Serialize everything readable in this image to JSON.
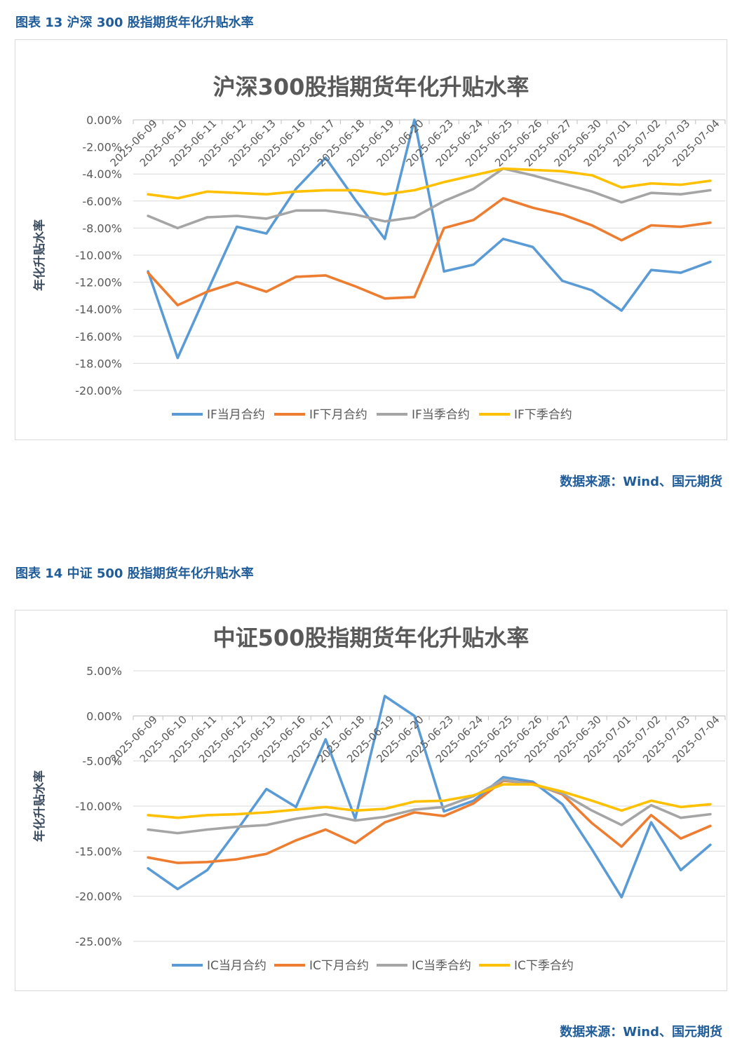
{
  "figures": [
    {
      "caption": "图表 13  沪深 300 股指期货年化升贴水率",
      "source": "数据来源：Wind、国元期货",
      "chart_data": {
        "type": "line",
        "title": "沪深300股指期货年化升贴水率",
        "ylabel": "年化升贴水率",
        "xlabel": "",
        "ylim": [
          -20,
          0
        ],
        "y_step": 2,
        "y_tick_decimals": 2,
        "y_unit": "%",
        "grid": true,
        "legend_position": "bottom",
        "categories": [
          "2025-06-09",
          "2025-06-10",
          "2025-06-11",
          "2025-06-12",
          "2025-06-13",
          "2025-06-16",
          "2025-06-17",
          "2025-06-18",
          "2025-06-19",
          "2025-06-20",
          "2025-06-23",
          "2025-06-24",
          "2025-06-25",
          "2025-06-26",
          "2025-06-27",
          "2025-06-30",
          "2025-07-01",
          "2025-07-02",
          "2025-07-03",
          "2025-07-04"
        ],
        "series": [
          {
            "name": "IF当月合约",
            "color": "#5b9bd5",
            "values": [
              -11.2,
              -17.6,
              -12.7,
              -7.9,
              -8.4,
              -5.1,
              -2.8,
              -5.9,
              -8.8,
              0.0,
              -11.2,
              -10.7,
              -8.8,
              -9.4,
              -11.9,
              -12.6,
              -14.1,
              -11.1,
              -11.3,
              -10.5
            ]
          },
          {
            "name": "IF下月合约",
            "color": "#ed7d31",
            "values": [
              -11.3,
              -13.7,
              -12.7,
              -12.0,
              -12.7,
              -11.6,
              -11.5,
              -12.3,
              -13.2,
              -13.1,
              -8.0,
              -7.4,
              -5.8,
              -6.5,
              -7.0,
              -7.8,
              -8.9,
              -7.8,
              -7.9,
              -7.6
            ]
          },
          {
            "name": "IF当季合约",
            "color": "#a5a5a5",
            "values": [
              -7.1,
              -8.0,
              -7.2,
              -7.1,
              -7.3,
              -6.7,
              -6.7,
              -7.0,
              -7.5,
              -7.2,
              -6.0,
              -5.1,
              -3.6,
              -4.1,
              -4.7,
              -5.3,
              -6.1,
              -5.4,
              -5.5,
              -5.2
            ]
          },
          {
            "name": "IF下季合约",
            "color": "#ffc000",
            "values": [
              -5.5,
              -5.8,
              -5.3,
              -5.4,
              -5.5,
              -5.3,
              -5.2,
              -5.2,
              -5.5,
              -5.2,
              -4.6,
              -4.1,
              -3.6,
              -3.7,
              -3.8,
              -4.1,
              -5.0,
              -4.7,
              -4.8,
              -4.5
            ]
          }
        ]
      }
    },
    {
      "caption": "图表 14  中证 500 股指期货年化升贴水率",
      "source": "数据来源：Wind、国元期货",
      "chart_data": {
        "type": "line",
        "title": "中证500股指期货年化升贴水率",
        "ylabel": "年化升贴水率",
        "xlabel": "",
        "ylim": [
          -25,
          5
        ],
        "y_step": 5,
        "y_tick_decimals": 2,
        "y_unit": "%",
        "grid": true,
        "legend_position": "bottom",
        "categories": [
          "2025-06-09",
          "2025-06-10",
          "2025-06-11",
          "2025-06-12",
          "2025-06-13",
          "2025-06-16",
          "2025-06-17",
          "2025-06-18",
          "2025-06-19",
          "2025-06-20",
          "2025-06-23",
          "2025-06-24",
          "2025-06-25",
          "2025-06-26",
          "2025-06-27",
          "2025-06-30",
          "2025-07-01",
          "2025-07-02",
          "2025-07-03",
          "2025-07-04"
        ],
        "series": [
          {
            "name": "IC当月合约",
            "color": "#5b9bd5",
            "values": [
              -16.9,
              -19.2,
              -17.1,
              -12.7,
              -8.1,
              -10.1,
              -2.6,
              -11.4,
              2.2,
              0.0,
              -10.6,
              -9.4,
              -6.8,
              -7.3,
              -9.8,
              -14.8,
              -20.1,
              -11.8,
              -17.1,
              -14.3
            ]
          },
          {
            "name": "IC下月合约",
            "color": "#ed7d31",
            "values": [
              -15.7,
              -16.3,
              -16.2,
              -15.9,
              -15.3,
              -13.8,
              -12.6,
              -14.1,
              -11.8,
              -10.7,
              -11.1,
              -9.7,
              -7.2,
              -7.5,
              -8.7,
              -11.9,
              -14.5,
              -11.0,
              -13.6,
              -12.2
            ]
          },
          {
            "name": "IC当季合约",
            "color": "#a5a5a5",
            "values": [
              -12.6,
              -13.0,
              -12.6,
              -12.3,
              -12.1,
              -11.4,
              -10.9,
              -11.6,
              -11.2,
              -10.4,
              -10.1,
              -8.9,
              -7.1,
              -7.6,
              -8.6,
              -10.5,
              -12.1,
              -9.9,
              -11.3,
              -10.9
            ]
          },
          {
            "name": "IC下季合约",
            "color": "#ffc000",
            "values": [
              -11.0,
              -11.3,
              -11.0,
              -10.9,
              -10.7,
              -10.4,
              -10.1,
              -10.5,
              -10.3,
              -9.5,
              -9.4,
              -8.8,
              -7.6,
              -7.6,
              -8.4,
              -9.4,
              -10.5,
              -9.4,
              -10.1,
              -9.8
            ]
          }
        ]
      }
    }
  ]
}
